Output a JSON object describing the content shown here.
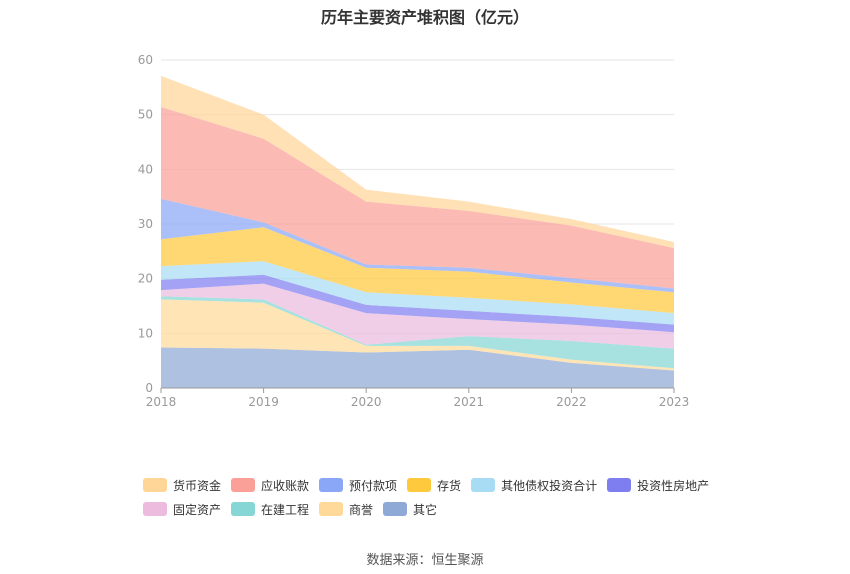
{
  "chart_data": {
    "type": "area",
    "title": "历年主要资产堆积图（亿元）",
    "stacked": true,
    "categories": [
      "2018",
      "2019",
      "2020",
      "2021",
      "2022",
      "2023"
    ],
    "ylim": [
      0,
      60
    ],
    "yticks": [
      "0",
      "10",
      "20",
      "30",
      "40",
      "50",
      "60"
    ],
    "grid": true,
    "legend_position": "bottom",
    "series": [
      {
        "name": "其它",
        "color": "#8fa9d6",
        "values": [
          7.4,
          7.2,
          6.5,
          7.0,
          4.6,
          3.2
        ]
      },
      {
        "name": "商誉",
        "color": "#ffd99a",
        "values": [
          8.8,
          8.4,
          1.2,
          0.7,
          0.6,
          0.4
        ]
      },
      {
        "name": "在建工程",
        "color": "#85d6d4",
        "values": [
          0.6,
          0.6,
          0.2,
          1.8,
          3.4,
          3.6
        ]
      },
      {
        "name": "固定资产",
        "color": "#ecbbde",
        "values": [
          1.1,
          2.9,
          5.8,
          3.1,
          3.0,
          3.0
        ]
      },
      {
        "name": "投资性房地产",
        "color": "#7f7ef0",
        "values": [
          1.9,
          1.6,
          1.5,
          1.5,
          1.4,
          1.4
        ]
      },
      {
        "name": "其他债权投资合计",
        "color": "#a8dcf4",
        "values": [
          2.5,
          2.5,
          2.3,
          2.4,
          2.3,
          2.1
        ]
      },
      {
        "name": "存货",
        "color": "#ffc93e",
        "values": [
          4.9,
          6.2,
          4.5,
          4.8,
          4.0,
          3.8
        ]
      },
      {
        "name": "预付款项",
        "color": "#8aa6f7",
        "values": [
          7.4,
          0.9,
          0.6,
          0.7,
          0.8,
          0.7
        ]
      },
      {
        "name": "应收账款",
        "color": "#fb9f99",
        "values": [
          16.8,
          15.3,
          11.5,
          10.4,
          9.6,
          7.4
        ]
      },
      {
        "name": "货币资金",
        "color": "#ffd698",
        "values": [
          5.7,
          4.4,
          2.2,
          1.7,
          1.2,
          1.1
        ]
      }
    ],
    "legend_order": [
      "货币资金",
      "应收账款",
      "预付款项",
      "存货",
      "其他债权投资合计",
      "投资性房地产",
      "固定资产",
      "在建工程",
      "商誉",
      "其它"
    ],
    "source": "数据来源：恒生聚源"
  }
}
